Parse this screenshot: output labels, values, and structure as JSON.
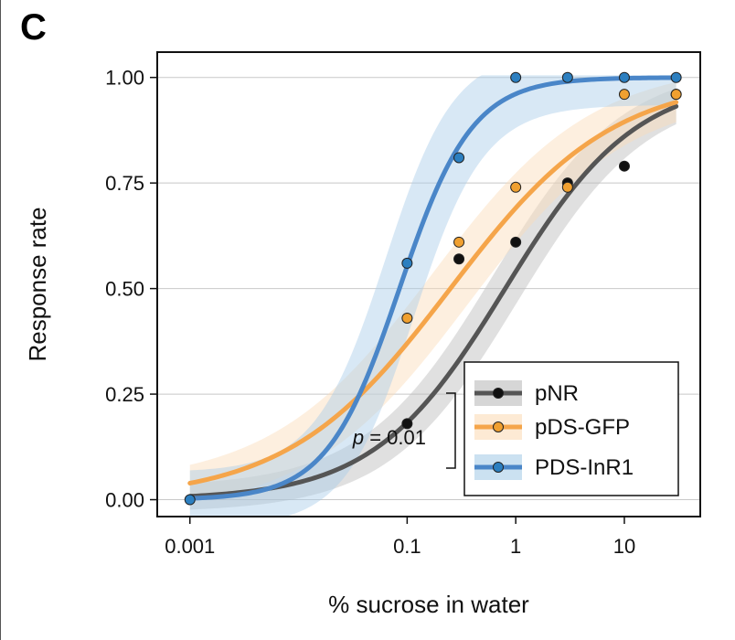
{
  "panel_label": "C",
  "chart_data": {
    "type": "line",
    "title": "",
    "xlabel": "% sucrose in water",
    "ylabel": "Response rate",
    "xscale": "log",
    "xlim": [
      0.0005,
      50
    ],
    "ylim": [
      -0.04,
      1.06
    ],
    "xticks": [
      0.001,
      0.1,
      1,
      10
    ],
    "xtick_labels": [
      "0.001",
      "0.1",
      "1",
      "10"
    ],
    "yticks": [
      0,
      0.25,
      0.5,
      0.75,
      1.0
    ],
    "ytick_labels": [
      "0.00",
      "0.25",
      "0.50",
      "0.75",
      "1.00"
    ],
    "grid": "horizontal",
    "legend_position": "lower-right",
    "x": [
      0.001,
      0.1,
      0.3,
      1,
      3,
      10,
      30
    ],
    "series": [
      {
        "name": "pNR",
        "color": "#555555",
        "marker_color": "#111111",
        "band_color": "#bbbbbb",
        "points": [
          {
            "x": 0.1,
            "y": 0.18
          },
          {
            "x": 0.3,
            "y": 0.57
          },
          {
            "x": 1,
            "y": 0.61
          },
          {
            "x": 3,
            "y": 0.75
          },
          {
            "x": 10,
            "y": 0.79
          },
          {
            "x": 30,
            "y": 0.96
          }
        ],
        "fit": {
          "ec50": 0.8,
          "hill": 0.72
        },
        "band_width": 0.06
      },
      {
        "name": "pDS-GFP",
        "color": "#f5a54a",
        "marker_color": "#f0a030",
        "band_color": "#fbdcb8",
        "points": [
          {
            "x": 0.1,
            "y": 0.43
          },
          {
            "x": 0.3,
            "y": 0.61
          },
          {
            "x": 1,
            "y": 0.74
          },
          {
            "x": 3,
            "y": 0.74
          },
          {
            "x": 10,
            "y": 0.96
          },
          {
            "x": 30,
            "y": 0.96
          }
        ],
        "fit": {
          "ec50": 0.25,
          "hill": 0.58
        },
        "band_width": 0.07
      },
      {
        "name": "PDS-InR1",
        "color": "#4a86c8",
        "marker_color": "#2c7fc0",
        "band_color": "#a8cde8",
        "points": [
          {
            "x": 0.001,
            "y": 0.0
          },
          {
            "x": 0.1,
            "y": 0.56
          },
          {
            "x": 0.3,
            "y": 0.81
          },
          {
            "x": 1,
            "y": 1.0
          },
          {
            "x": 3,
            "y": 1.0
          },
          {
            "x": 10,
            "y": 1.0
          },
          {
            "x": 30,
            "y": 1.0
          }
        ],
        "fit": {
          "ec50": 0.085,
          "hill": 1.3
        },
        "band_width": 0.13
      }
    ],
    "annotation": {
      "text_prefix": "p",
      "text_suffix": " = 0.01"
    }
  }
}
